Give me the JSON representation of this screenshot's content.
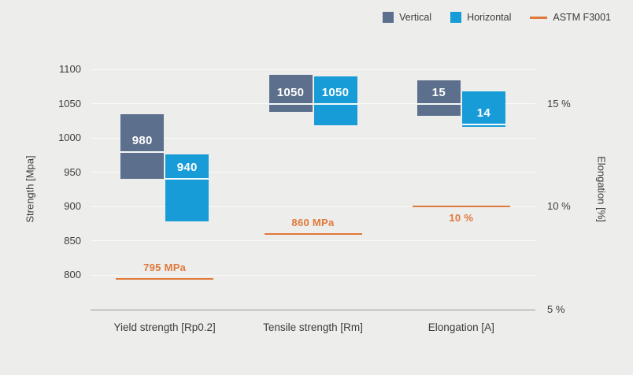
{
  "colors": {
    "background": "#ededec",
    "text": "#3c3c3b",
    "gridline": "#fafaf9",
    "axis_line": "#9a9a99",
    "vertical_bar": "#5c6f8d",
    "horizontal_bar": "#189cd8",
    "reference_line": "#e0793a",
    "bar_label": "#ffffff"
  },
  "chart_data": {
    "type": "bar",
    "title": "",
    "ylabel_left": "Strength [Mpa]",
    "ylabel_right": "Elongation [%]",
    "grid": true,
    "legend_position": "top-right",
    "left_axis": {
      "min": 750,
      "max": 1100,
      "ticks": [
        800,
        850,
        900,
        950,
        1000,
        1050,
        1100
      ]
    },
    "right_axis": {
      "ticks": [
        {
          "label": "5 %",
          "mpa": 750
        },
        {
          "label": "10 %",
          "mpa": 900
        },
        {
          "label": "15 %",
          "mpa": 1050
        }
      ]
    },
    "legend": [
      {
        "label": "Vertical",
        "color": "#5c6f8d",
        "type": "box"
      },
      {
        "label": "Horizontal",
        "color": "#189cd8",
        "type": "box"
      },
      {
        "label": "ASTM F3001",
        "color": "#e0793a",
        "type": "line"
      }
    ],
    "groups": [
      {
        "category": "Yield strength [Rp0.2]",
        "bars": [
          {
            "series": "Vertical",
            "min": 940,
            "max": 1035,
            "marker": 980,
            "label": "980"
          },
          {
            "series": "Horizontal",
            "min": 878,
            "max": 976,
            "marker": 940,
            "label": "940"
          }
        ],
        "reference": {
          "value": 795,
          "label": "795 MPa",
          "label_side": "above"
        }
      },
      {
        "category": "Tensile strength [Rm]",
        "bars": [
          {
            "series": "Vertical",
            "min": 1038,
            "max": 1092,
            "marker": 1050,
            "label": "1050"
          },
          {
            "series": "Horizontal",
            "min": 1018,
            "max": 1090,
            "marker": 1050,
            "label": "1050"
          }
        ],
        "reference": {
          "value": 860,
          "label": "860 MPa",
          "label_side": "above"
        }
      },
      {
        "category": "Elongation [A]",
        "bars": [
          {
            "series": "Vertical",
            "min": 1032,
            "max": 1084,
            "marker": 1050,
            "label": "15",
            "min_pct": 14.4,
            "max_pct": 16.1,
            "marker_pct": 15
          },
          {
            "series": "Horizontal",
            "min": 1016,
            "max": 1068,
            "marker": 1020,
            "label": "14",
            "min_pct": 13.9,
            "max_pct": 15.6,
            "marker_pct": 14
          }
        ],
        "reference": {
          "value": 900,
          "label": "10 %",
          "label_side": "below",
          "value_pct": 10
        }
      }
    ]
  }
}
